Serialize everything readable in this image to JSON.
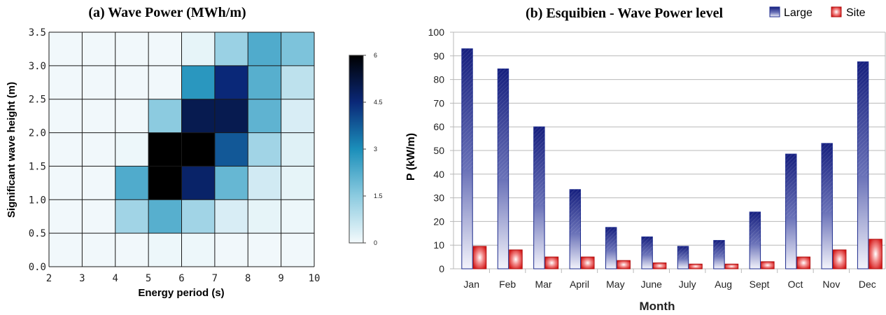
{
  "chart_data": [
    {
      "type": "heatmap",
      "title": "(a) Wave Power (MWh/m)",
      "xlabel": "Energy period (s)",
      "ylabel": "Significant wave height (m)",
      "x_edges": [
        2,
        3,
        4,
        5,
        6,
        7,
        8,
        9,
        10
      ],
      "y_edges": [
        0.0,
        0.5,
        1.0,
        1.5,
        2.0,
        2.5,
        3.0,
        3.5
      ],
      "x_ticks": [
        "2",
        "3",
        "4",
        "5",
        "6",
        "7",
        "8",
        "9",
        "10"
      ],
      "y_ticks": [
        "0.0",
        "0.5",
        "1.0",
        "1.5",
        "2.0",
        "2.5",
        "3.0",
        "3.5"
      ],
      "values": [
        [
          0.05,
          0.05,
          0.05,
          0.1,
          0.1,
          0.05,
          0.05,
          0.05
        ],
        [
          0.05,
          0.05,
          1.2,
          2.2,
          1.2,
          0.4,
          0.2,
          0.1
        ],
        [
          0.05,
          0.05,
          2.3,
          6.0,
          4.7,
          2.0,
          0.5,
          0.2
        ],
        [
          0.05,
          0.05,
          0.1,
          6.0,
          6.0,
          3.8,
          1.2,
          0.3
        ],
        [
          0.05,
          0.05,
          0.05,
          1.5,
          5.0,
          5.0,
          2.1,
          0.4
        ],
        [
          0.05,
          0.05,
          0.05,
          0.05,
          2.8,
          4.5,
          2.2,
          0.8
        ],
        [
          0.05,
          0.05,
          0.05,
          0.05,
          0.2,
          1.3,
          2.3,
          1.7
        ]
      ],
      "colorbar": {
        "min": 0,
        "max": 6,
        "ticks": [
          "0",
          "1.5",
          "3",
          "4.5",
          "6"
        ],
        "tick_values": [
          0,
          1.5,
          3,
          4.5,
          6
        ]
      },
      "colors": {
        "low": "#f4fafc",
        "mid": "#1b8fba",
        "dark": "#08104f",
        "max": "#000000"
      },
      "grid": true
    },
    {
      "type": "bar",
      "title": "(b) Esquibien - Wave Power level",
      "xlabel": "Month",
      "ylabel": "P (kW/m)",
      "ylim": [
        0,
        100
      ],
      "y_ticks": [
        "0",
        "10",
        "20",
        "30",
        "40",
        "50",
        "60",
        "70",
        "80",
        "90",
        "100"
      ],
      "categories": [
        "Jan",
        "Feb",
        "Mar",
        "April",
        "May",
        "June",
        "July",
        "Aug",
        "Sept",
        "Oct",
        "Nov",
        "Dec"
      ],
      "series": [
        {
          "name": "Large",
          "values": [
            93,
            84.5,
            60,
            33.5,
            17.5,
            13.5,
            9.5,
            12,
            24,
            48.5,
            53,
            87.5
          ],
          "color": "#1c2a8c"
        },
        {
          "name": "Site",
          "values": [
            9.5,
            8,
            5,
            5,
            3.5,
            2.5,
            2,
            2,
            3,
            5,
            8,
            12.5
          ],
          "color": "#e52222"
        }
      ],
      "legend": "top-right",
      "grid": true
    }
  ]
}
